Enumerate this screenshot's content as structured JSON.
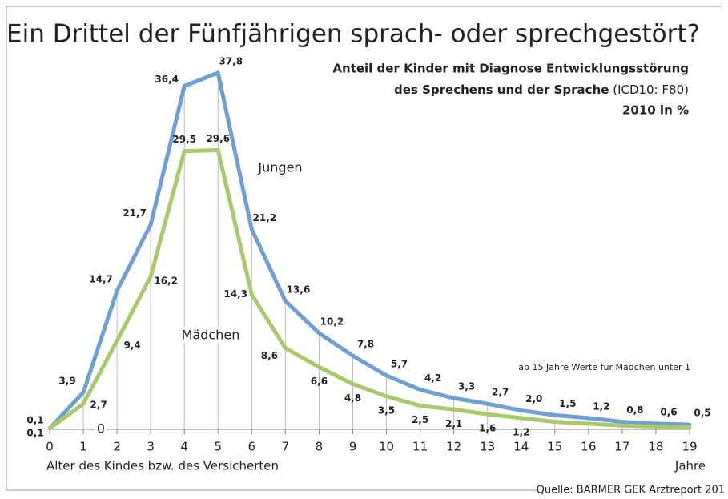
{
  "chart_data": {
    "type": "line",
    "title": "Ein Drittel der Fünfjährigen sprach- oder sprechgestört?",
    "subtitle": [
      "Anteil der Kinder mit Diagnose Entwicklungsstörung",
      "des Sprechens und der Sprache",
      "(ICD10: F80)",
      "2010 in %"
    ],
    "x": [
      0,
      1,
      2,
      3,
      4,
      5,
      6,
      7,
      8,
      9,
      10,
      11,
      12,
      13,
      14,
      15,
      16,
      17,
      18,
      19
    ],
    "xlim": [
      0,
      19
    ],
    "xticks": [
      0,
      1,
      2,
      3,
      4,
      5,
      6,
      7,
      8,
      9,
      10,
      11,
      12,
      13,
      14,
      15,
      16,
      17,
      18,
      19
    ],
    "ylim": [
      0,
      40
    ],
    "yticks": [
      0
    ],
    "xlabel": "Alter des Kindes bzw. des Versicherten",
    "xunit": "Jahre",
    "series": [
      {
        "name": "Jungen",
        "color": "#6fa0d3",
        "values": [
          0.1,
          3.9,
          14.7,
          21.7,
          36.4,
          37.8,
          21.2,
          13.6,
          10.2,
          7.8,
          5.7,
          4.2,
          3.3,
          2.7,
          2.0,
          1.5,
          1.2,
          0.8,
          0.6,
          0.5
        ],
        "value_labels": [
          "0,1",
          "3,9",
          "14,7",
          "21,7",
          "36,4",
          "37,8",
          "21,2",
          "13,6",
          "10,2",
          "7,8",
          "5,7",
          "4,2",
          "3,3",
          "2,7",
          "2,0",
          "1,5",
          "1,2",
          "0,8",
          "0,6",
          "0,5"
        ]
      },
      {
        "name": "Mädchen",
        "color": "#a9c96c",
        "values": [
          0.1,
          2.7,
          9.4,
          16.2,
          29.5,
          29.6,
          14.3,
          8.6,
          6.6,
          4.8,
          3.5,
          2.5,
          2.1,
          1.6,
          1.2,
          0.8,
          0.6,
          0.4,
          0.3,
          0.2
        ],
        "value_labels": [
          "0,1",
          "2,7",
          "9,4",
          "16,2",
          "29,5",
          "29,6",
          "14,3",
          "8,6",
          "6,6",
          "4,8",
          "3,5",
          "2,5",
          "2,1",
          "1,6",
          "1,2",
          null,
          null,
          null,
          null,
          null
        ]
      }
    ],
    "annotation": "ab 15 Jahre Werte für Mädchen unter 1",
    "source": "Quelle: BARMER GEK Arztreport 201"
  }
}
